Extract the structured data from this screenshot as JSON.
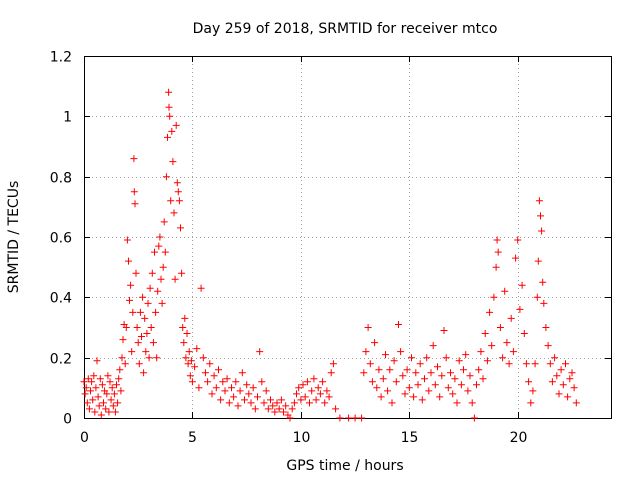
{
  "chart_data": {
    "type": "scatter",
    "title": "Day 259 of 2018, SRMTID for receiver mtco",
    "xlabel": "GPS time / hours",
    "ylabel": "SRMTID / TECUs",
    "xlim": [
      0,
      24.3
    ],
    "ylim": [
      0,
      1.2
    ],
    "xticks": [
      0,
      5,
      10,
      15,
      20
    ],
    "xtick_labels": [
      "0",
      "5",
      "10",
      "15",
      "20"
    ],
    "yticks": [
      0,
      0.2,
      0.4,
      0.6,
      0.8,
      1.0,
      1.2
    ],
    "ytick_labels": [
      "0",
      "0.2",
      "0.4",
      "0.6",
      "0.8",
      "1",
      "1.2"
    ],
    "grid": true,
    "marker": "+",
    "marker_color": "#ff0000",
    "series": [
      {
        "name": "SRMTID",
        "points": [
          [
            0.0,
            0.12
          ],
          [
            0.05,
            0.08
          ],
          [
            0.1,
            0.1
          ],
          [
            0.15,
            0.05
          ],
          [
            0.2,
            0.13
          ],
          [
            0.25,
            0.03
          ],
          [
            0.3,
            0.09
          ],
          [
            0.35,
            0.12
          ],
          [
            0.4,
            0.06
          ],
          [
            0.45,
            0.14
          ],
          [
            0.5,
            0.02
          ],
          [
            0.55,
            0.1
          ],
          [
            0.6,
            0.19
          ],
          [
            0.65,
            0.07
          ],
          [
            0.7,
            0.04
          ],
          [
            0.75,
            0.13
          ],
          [
            0.8,
            0.01
          ],
          [
            0.85,
            0.11
          ],
          [
            0.9,
            0.05
          ],
          [
            0.95,
            0.09
          ],
          [
            1.0,
            0.03
          ],
          [
            1.05,
            0.08
          ],
          [
            1.1,
            0.14
          ],
          [
            1.15,
            0.02
          ],
          [
            1.2,
            0.12
          ],
          [
            1.25,
            0.06
          ],
          [
            1.3,
            0.1
          ],
          [
            1.35,
            0.04
          ],
          [
            1.4,
            0.08
          ],
          [
            1.45,
            0.02
          ],
          [
            1.5,
            0.11
          ],
          [
            1.55,
            0.05
          ],
          [
            1.6,
            0.13
          ],
          [
            1.65,
            0.16
          ],
          [
            1.7,
            0.09
          ],
          [
            1.75,
            0.2
          ],
          [
            1.8,
            0.26
          ],
          [
            1.85,
            0.31
          ],
          [
            1.9,
            0.18
          ],
          [
            1.95,
            0.3
          ],
          [
            2.0,
            0.59
          ],
          [
            2.05,
            0.52
          ],
          [
            2.1,
            0.39
          ],
          [
            2.15,
            0.44
          ],
          [
            2.2,
            0.22
          ],
          [
            2.25,
            0.35
          ],
          [
            2.3,
            0.86
          ],
          [
            2.32,
            0.75
          ],
          [
            2.35,
            0.71
          ],
          [
            2.4,
            0.48
          ],
          [
            2.45,
            0.3
          ],
          [
            2.5,
            0.25
          ],
          [
            2.55,
            0.18
          ],
          [
            2.6,
            0.35
          ],
          [
            2.65,
            0.27
          ],
          [
            2.7,
            0.4
          ],
          [
            2.75,
            0.15
          ],
          [
            2.8,
            0.33
          ],
          [
            2.85,
            0.22
          ],
          [
            2.9,
            0.28
          ],
          [
            2.95,
            0.38
          ],
          [
            3.0,
            0.2
          ],
          [
            3.05,
            0.43
          ],
          [
            3.1,
            0.3
          ],
          [
            3.15,
            0.48
          ],
          [
            3.2,
            0.25
          ],
          [
            3.25,
            0.55
          ],
          [
            3.3,
            0.35
          ],
          [
            3.35,
            0.2
          ],
          [
            3.4,
            0.42
          ],
          [
            3.45,
            0.57
          ],
          [
            3.5,
            0.6
          ],
          [
            3.55,
            0.46
          ],
          [
            3.6,
            0.38
          ],
          [
            3.65,
            0.5
          ],
          [
            3.7,
            0.65
          ],
          [
            3.75,
            0.55
          ],
          [
            3.8,
            0.8
          ],
          [
            3.85,
            0.93
          ],
          [
            3.9,
            1.08
          ],
          [
            3.92,
            1.03
          ],
          [
            3.95,
            1.0
          ],
          [
            4.0,
            0.72
          ],
          [
            4.05,
            0.95
          ],
          [
            4.1,
            0.85
          ],
          [
            4.15,
            0.68
          ],
          [
            4.2,
            0.46
          ],
          [
            4.25,
            0.97
          ],
          [
            4.3,
            0.78
          ],
          [
            4.35,
            0.75
          ],
          [
            4.4,
            0.72
          ],
          [
            4.45,
            0.63
          ],
          [
            4.5,
            0.48
          ],
          [
            4.55,
            0.3
          ],
          [
            4.6,
            0.25
          ],
          [
            4.65,
            0.33
          ],
          [
            4.7,
            0.2
          ],
          [
            4.75,
            0.28
          ],
          [
            4.8,
            0.18
          ],
          [
            4.85,
            0.22
          ],
          [
            4.9,
            0.14
          ],
          [
            4.95,
            0.19
          ],
          [
            5.0,
            0.12
          ],
          [
            5.1,
            0.17
          ],
          [
            5.2,
            0.23
          ],
          [
            5.3,
            0.1
          ],
          [
            5.4,
            0.43
          ],
          [
            5.5,
            0.2
          ],
          [
            5.6,
            0.15
          ],
          [
            5.7,
            0.12
          ],
          [
            5.8,
            0.18
          ],
          [
            5.9,
            0.08
          ],
          [
            6.0,
            0.14
          ],
          [
            6.1,
            0.1
          ],
          [
            6.2,
            0.16
          ],
          [
            6.3,
            0.06
          ],
          [
            6.4,
            0.12
          ],
          [
            6.5,
            0.09
          ],
          [
            6.6,
            0.13
          ],
          [
            6.7,
            0.05
          ],
          [
            6.8,
            0.1
          ],
          [
            6.9,
            0.07
          ],
          [
            7.0,
            0.12
          ],
          [
            7.1,
            0.04
          ],
          [
            7.2,
            0.09
          ],
          [
            7.3,
            0.15
          ],
          [
            7.4,
            0.06
          ],
          [
            7.5,
            0.11
          ],
          [
            7.6,
            0.08
          ],
          [
            7.7,
            0.05
          ],
          [
            7.8,
            0.1
          ],
          [
            7.9,
            0.03
          ],
          [
            8.0,
            0.07
          ],
          [
            8.1,
            0.22
          ],
          [
            8.2,
            0.12
          ],
          [
            8.3,
            0.05
          ],
          [
            8.4,
            0.09
          ],
          [
            8.5,
            0.03
          ],
          [
            8.6,
            0.06
          ],
          [
            8.7,
            0.04
          ],
          [
            8.8,
            0.02
          ],
          [
            8.9,
            0.05
          ],
          [
            9.0,
            0.03
          ],
          [
            9.1,
            0.06
          ],
          [
            9.2,
            0.02
          ],
          [
            9.3,
            0.04
          ],
          [
            9.4,
            0.01
          ],
          [
            9.5,
            0.0
          ],
          [
            9.6,
            0.03
          ],
          [
            9.7,
            0.05
          ],
          [
            9.8,
            0.08
          ],
          [
            9.9,
            0.1
          ],
          [
            10.0,
            0.06
          ],
          [
            10.1,
            0.11
          ],
          [
            10.2,
            0.07
          ],
          [
            10.3,
            0.12
          ],
          [
            10.4,
            0.05
          ],
          [
            10.5,
            0.09
          ],
          [
            10.6,
            0.13
          ],
          [
            10.7,
            0.06
          ],
          [
            10.8,
            0.1
          ],
          [
            10.9,
            0.08
          ],
          [
            11.0,
            0.12
          ],
          [
            11.1,
            0.05
          ],
          [
            11.2,
            0.09
          ],
          [
            11.3,
            0.07
          ],
          [
            11.4,
            0.15
          ],
          [
            11.5,
            0.18
          ],
          [
            11.6,
            0.03
          ],
          [
            11.8,
            0.0
          ],
          [
            12.2,
            0.0
          ],
          [
            12.5,
            0.0
          ],
          [
            12.8,
            0.0
          ],
          [
            12.9,
            0.15
          ],
          [
            13.0,
            0.22
          ],
          [
            13.1,
            0.3
          ],
          [
            13.2,
            0.18
          ],
          [
            13.3,
            0.12
          ],
          [
            13.4,
            0.25
          ],
          [
            13.5,
            0.1
          ],
          [
            13.6,
            0.16
          ],
          [
            13.7,
            0.07
          ],
          [
            13.8,
            0.13
          ],
          [
            13.9,
            0.21
          ],
          [
            14.0,
            0.09
          ],
          [
            14.1,
            0.16
          ],
          [
            14.2,
            0.05
          ],
          [
            14.3,
            0.19
          ],
          [
            14.4,
            0.12
          ],
          [
            14.5,
            0.31
          ],
          [
            14.6,
            0.22
          ],
          [
            14.7,
            0.14
          ],
          [
            14.8,
            0.08
          ],
          [
            14.9,
            0.16
          ],
          [
            15.0,
            0.1
          ],
          [
            15.1,
            0.2
          ],
          [
            15.2,
            0.07
          ],
          [
            15.3,
            0.15
          ],
          [
            15.4,
            0.11
          ],
          [
            15.5,
            0.18
          ],
          [
            15.6,
            0.06
          ],
          [
            15.7,
            0.13
          ],
          [
            15.8,
            0.2
          ],
          [
            15.9,
            0.09
          ],
          [
            16.0,
            0.15
          ],
          [
            16.1,
            0.24
          ],
          [
            16.2,
            0.11
          ],
          [
            16.3,
            0.17
          ],
          [
            16.4,
            0.07
          ],
          [
            16.5,
            0.14
          ],
          [
            16.6,
            0.29
          ],
          [
            16.7,
            0.2
          ],
          [
            16.8,
            0.1
          ],
          [
            16.9,
            0.15
          ],
          [
            17.0,
            0.08
          ],
          [
            17.1,
            0.13
          ],
          [
            17.2,
            0.05
          ],
          [
            17.3,
            0.19
          ],
          [
            17.4,
            0.11
          ],
          [
            17.5,
            0.16
          ],
          [
            17.6,
            0.21
          ],
          [
            17.7,
            0.09
          ],
          [
            17.8,
            0.14
          ],
          [
            17.9,
            0.05
          ],
          [
            18.0,
            0.0
          ],
          [
            18.1,
            0.11
          ],
          [
            18.2,
            0.16
          ],
          [
            18.3,
            0.22
          ],
          [
            18.4,
            0.13
          ],
          [
            18.5,
            0.28
          ],
          [
            18.6,
            0.19
          ],
          [
            18.7,
            0.35
          ],
          [
            18.8,
            0.24
          ],
          [
            18.9,
            0.4
          ],
          [
            19.0,
            0.5
          ],
          [
            19.05,
            0.59
          ],
          [
            19.1,
            0.55
          ],
          [
            19.2,
            0.3
          ],
          [
            19.3,
            0.2
          ],
          [
            19.4,
            0.42
          ],
          [
            19.5,
            0.25
          ],
          [
            19.6,
            0.18
          ],
          [
            19.7,
            0.33
          ],
          [
            19.8,
            0.22
          ],
          [
            19.9,
            0.53
          ],
          [
            20.0,
            0.59
          ],
          [
            20.1,
            0.36
          ],
          [
            20.2,
            0.44
          ],
          [
            20.3,
            0.28
          ],
          [
            20.4,
            0.18
          ],
          [
            20.5,
            0.12
          ],
          [
            20.6,
            0.05
          ],
          [
            20.7,
            0.09
          ],
          [
            20.8,
            0.18
          ],
          [
            20.9,
            0.4
          ],
          [
            20.95,
            0.52
          ],
          [
            21.0,
            0.72
          ],
          [
            21.05,
            0.67
          ],
          [
            21.1,
            0.62
          ],
          [
            21.15,
            0.45
          ],
          [
            21.2,
            0.38
          ],
          [
            21.3,
            0.3
          ],
          [
            21.4,
            0.24
          ],
          [
            21.5,
            0.18
          ],
          [
            21.6,
            0.12
          ],
          [
            21.7,
            0.2
          ],
          [
            21.8,
            0.14
          ],
          [
            21.9,
            0.08
          ],
          [
            22.0,
            0.16
          ],
          [
            22.1,
            0.11
          ],
          [
            22.2,
            0.18
          ],
          [
            22.3,
            0.07
          ],
          [
            22.4,
            0.13
          ],
          [
            22.5,
            0.15
          ],
          [
            22.6,
            0.1
          ],
          [
            22.7,
            0.05
          ]
        ]
      }
    ]
  }
}
